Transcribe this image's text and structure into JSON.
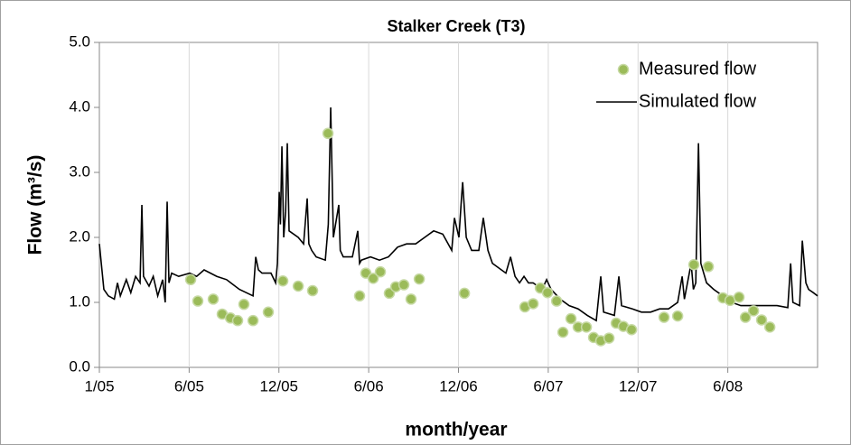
{
  "chart_data": {
    "type": "line",
    "title": "Stalker Creek (T3)",
    "x_label": "month/year",
    "y_label": "Flow (m³/s)",
    "xlim": [
      0,
      48
    ],
    "xticks": [
      {
        "value": 0,
        "label": "1/05"
      },
      {
        "value": 6,
        "label": "6/05"
      },
      {
        "value": 12,
        "label": "12/05"
      },
      {
        "value": 18,
        "label": "6/06"
      },
      {
        "value": 24,
        "label": "12/06"
      },
      {
        "value": 30,
        "label": "6/07"
      },
      {
        "value": 36,
        "label": "12/07"
      },
      {
        "value": 42,
        "label": "6/08"
      }
    ],
    "ylim": [
      0,
      5
    ],
    "yticks": [
      {
        "value": 0,
        "label": "0.0"
      },
      {
        "value": 1,
        "label": "1.0"
      },
      {
        "value": 2,
        "label": "2.0"
      },
      {
        "value": 3,
        "label": "3.0"
      },
      {
        "value": 4,
        "label": "4.0"
      },
      {
        "value": 5,
        "label": "5.0"
      }
    ],
    "grid": true,
    "legend": "upper right",
    "series": [
      {
        "name": "Measured flow",
        "type": "scatter",
        "color": "#9bbb59",
        "x": [
          6.1,
          6.58,
          7.61,
          8.21,
          8.76,
          9.24,
          9.66,
          10.27,
          11.29,
          12.26,
          13.29,
          14.25,
          15.28,
          17.39,
          17.81,
          18.3,
          18.78,
          19.38,
          19.81,
          20.35,
          20.83,
          21.38,
          24.4,
          28.44,
          28.99,
          29.47,
          29.95,
          30.56,
          30.98,
          31.52,
          32.0,
          32.55,
          33.03,
          33.51,
          34.06,
          34.54,
          35.02,
          35.57,
          37.74,
          38.65,
          39.73,
          40.7,
          41.67,
          42.15,
          42.75,
          43.18,
          43.72,
          44.26,
          44.81
        ],
        "values": [
          1.35,
          1.02,
          1.05,
          0.82,
          0.76,
          0.72,
          0.97,
          0.72,
          0.85,
          1.33,
          1.25,
          1.18,
          3.6,
          1.1,
          1.45,
          1.37,
          1.47,
          1.14,
          1.24,
          1.27,
          1.05,
          1.36,
          1.14,
          0.93,
          0.98,
          1.22,
          1.15,
          1.02,
          0.54,
          0.75,
          0.62,
          0.62,
          0.46,
          0.41,
          0.45,
          0.68,
          0.63,
          0.58,
          0.77,
          0.79,
          1.58,
          1.55,
          1.07,
          1.03,
          1.08,
          0.77,
          0.87,
          0.73,
          0.62
        ]
      },
      {
        "name": "Simulated flow",
        "type": "line",
        "color": "#000000",
        "x": [
          0,
          0.3,
          0.6,
          1.0,
          1.21,
          1.4,
          1.8,
          2.1,
          2.42,
          2.72,
          2.84,
          2.95,
          3.32,
          3.6,
          3.9,
          4.23,
          4.4,
          4.53,
          4.65,
          4.83,
          5.3,
          6.04,
          6.5,
          7.0,
          7.85,
          8.5,
          9.36,
          10.27,
          10.45,
          10.63,
          10.87,
          11.47,
          11.78,
          11.9,
          12.02,
          12.1,
          12.2,
          12.32,
          12.45,
          12.56,
          12.68,
          13.29,
          13.65,
          13.89,
          14.0,
          14.19,
          14.49,
          15.1,
          15.3,
          15.46,
          15.64,
          16.0,
          16.1,
          16.3,
          16.91,
          17.27,
          17.39,
          17.51,
          18.12,
          18.72,
          19.32,
          19.93,
          20.53,
          21.14,
          21.74,
          22.34,
          22.95,
          23.55,
          23.73,
          24.03,
          24.2,
          24.28,
          24.52,
          24.88,
          25.36,
          25.66,
          25.97,
          26.27,
          26.57,
          26.87,
          27.17,
          27.48,
          27.78,
          28.08,
          28.38,
          28.68,
          28.99,
          29.59,
          29.89,
          30.19,
          30.8,
          31.4,
          32.0,
          32.61,
          33.21,
          33.51,
          33.7,
          34.42,
          34.72,
          34.9,
          35.63,
          36.23,
          36.84,
          37.44,
          38.04,
          38.65,
          38.95,
          39.1,
          39.55,
          39.7,
          39.86,
          40.04,
          40.2,
          40.58,
          41.06,
          41.67,
          42.27,
          42.87,
          44.08,
          45.29,
          46.01,
          46.2,
          46.35,
          46.8,
          46.98,
          47.22,
          47.4,
          47.71,
          48
        ],
        "values": [
          1.9,
          1.2,
          1.1,
          1.05,
          1.3,
          1.1,
          1.35,
          1.15,
          1.4,
          1.3,
          2.5,
          1.4,
          1.25,
          1.4,
          1.1,
          1.35,
          1.0,
          2.55,
          1.3,
          1.45,
          1.4,
          1.45,
          1.4,
          1.5,
          1.4,
          1.35,
          1.2,
          1.1,
          1.7,
          1.5,
          1.45,
          1.45,
          1.3,
          1.6,
          2.7,
          2.2,
          3.4,
          2.0,
          2.4,
          3.45,
          2.1,
          2.0,
          1.9,
          2.6,
          1.9,
          1.8,
          1.7,
          1.65,
          2.2,
          4.0,
          2.0,
          2.5,
          1.8,
          1.7,
          1.7,
          2.1,
          1.6,
          1.65,
          1.7,
          1.65,
          1.7,
          1.85,
          1.9,
          1.9,
          2.0,
          2.1,
          2.05,
          1.8,
          2.3,
          2.0,
          2.6,
          2.85,
          2.0,
          1.8,
          1.8,
          2.3,
          1.8,
          1.6,
          1.55,
          1.5,
          1.45,
          1.7,
          1.4,
          1.3,
          1.4,
          1.3,
          1.3,
          1.2,
          1.35,
          1.2,
          1.05,
          0.95,
          0.9,
          0.8,
          0.72,
          1.4,
          0.85,
          0.8,
          1.4,
          0.95,
          0.9,
          0.85,
          0.85,
          0.9,
          0.9,
          1.0,
          1.4,
          1.05,
          1.6,
          1.2,
          1.3,
          3.45,
          1.6,
          1.3,
          1.2,
          1.1,
          1.0,
          0.95,
          0.95,
          0.95,
          0.92,
          1.6,
          1.0,
          0.95,
          1.95,
          1.3,
          1.2,
          1.15,
          1.1
        ]
      }
    ]
  }
}
